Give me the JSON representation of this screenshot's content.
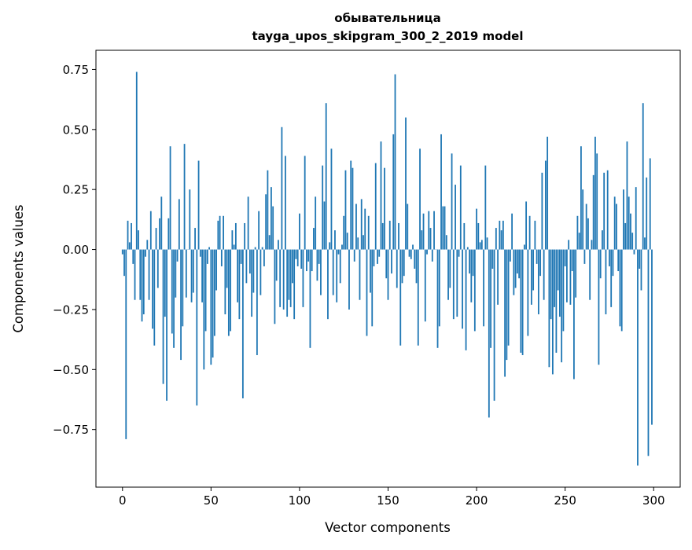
{
  "chart_data": {
    "type": "bar",
    "title": "обывательница",
    "subtitle": "tayga_upos_skipgram_300_2_2019 model",
    "xlabel": "Vector components",
    "ylabel": "Components values",
    "xlim": [
      -15,
      315
    ],
    "ylim": [
      -0.99,
      0.83
    ],
    "xticks": [
      0,
      50,
      100,
      150,
      200,
      250,
      300
    ],
    "xtick_labels": [
      "0",
      "50",
      "100",
      "150",
      "200",
      "250",
      "300"
    ],
    "yticks": [
      -0.75,
      -0.5,
      -0.25,
      0,
      0.25,
      0.5,
      0.75
    ],
    "ytick_labels": [
      "−0.75",
      "−0.50",
      "−0.25",
      "0.00",
      "0.25",
      "0.50",
      "0.75"
    ],
    "grid": false,
    "color": "#1f77b4",
    "values": [
      -0.02,
      -0.11,
      -0.79,
      0.12,
      0.03,
      0.11,
      -0.06,
      -0.21,
      0.74,
      0.08,
      -0.21,
      -0.3,
      -0.27,
      -0.03,
      0.04,
      -0.21,
      0.16,
      -0.33,
      -0.4,
      0.09,
      -0.16,
      0.13,
      0.22,
      -0.56,
      -0.28,
      -0.63,
      0.13,
      0.43,
      -0.35,
      -0.41,
      -0.2,
      -0.05,
      0.21,
      -0.46,
      -0.32,
      0.44,
      -0.2,
      0.0,
      0.25,
      -0.22,
      -0.18,
      0.09,
      -0.65,
      0.37,
      -0.03,
      -0.22,
      -0.5,
      -0.34,
      -0.06,
      0.01,
      -0.48,
      -0.45,
      -0.36,
      -0.17,
      0.12,
      0.14,
      -0.07,
      0.14,
      -0.27,
      -0.16,
      -0.36,
      -0.34,
      0.08,
      0.02,
      0.11,
      -0.22,
      -0.29,
      -0.06,
      -0.62,
      0.11,
      -0.14,
      0.22,
      -0.1,
      -0.28,
      -0.18,
      0.01,
      -0.44,
      0.16,
      -0.19,
      0.01,
      -0.07,
      0.23,
      0.33,
      0.06,
      0.26,
      0.18,
      -0.31,
      -0.13,
      0.04,
      -0.24,
      0.51,
      -0.25,
      0.39,
      -0.28,
      -0.21,
      -0.24,
      -0.14,
      -0.29,
      -0.04,
      -0.07,
      0.15,
      -0.08,
      -0.24,
      0.39,
      -0.09,
      -0.05,
      -0.41,
      -0.09,
      0.09,
      0.22,
      -0.13,
      -0.06,
      -0.19,
      0.35,
      0.2,
      0.61,
      -0.29,
      0.03,
      0.42,
      -0.19,
      0.08,
      -0.22,
      -0.02,
      -0.14,
      0.02,
      0.14,
      0.33,
      0.07,
      -0.25,
      0.37,
      0.34,
      -0.05,
      0.19,
      0.05,
      -0.21,
      0.21,
      0.06,
      0.17,
      -0.36,
      0.14,
      -0.18,
      -0.32,
      -0.07,
      0.36,
      -0.06,
      -0.03,
      0.45,
      0.11,
      0.34,
      -0.12,
      -0.21,
      0.12,
      -0.1,
      0.48,
      0.73,
      -0.16,
      0.11,
      -0.4,
      -0.14,
      -0.11,
      0.55,
      0.19,
      -0.03,
      -0.04,
      0.02,
      -0.08,
      -0.14,
      -0.4,
      0.42,
      0.08,
      0.15,
      -0.3,
      -0.02,
      0.16,
      0.09,
      -0.05,
      0.16,
      0.0,
      -0.41,
      -0.32,
      0.48,
      0.18,
      0.18,
      0.06,
      -0.21,
      -0.16,
      0.4,
      -0.29,
      0.27,
      -0.28,
      -0.03,
      0.35,
      -0.33,
      0.11,
      -0.42,
      0.01,
      -0.1,
      -0.22,
      -0.11,
      -0.34,
      0.17,
      0.11,
      0.03,
      0.04,
      -0.32,
      0.35,
      0.05,
      -0.7,
      -0.41,
      -0.08,
      -0.63,
      0.09,
      -0.23,
      0.12,
      0.08,
      0.12,
      -0.53,
      -0.46,
      -0.4,
      -0.05,
      0.15,
      -0.19,
      -0.16,
      -0.1,
      -0.12,
      -0.43,
      -0.44,
      0.02,
      0.2,
      -0.36,
      0.14,
      -0.23,
      -0.17,
      0.12,
      -0.06,
      -0.27,
      -0.11,
      0.32,
      -0.21,
      0.37,
      0.47,
      -0.49,
      -0.29,
      -0.52,
      -0.24,
      -0.43,
      -0.17,
      -0.28,
      -0.47,
      -0.34,
      -0.07,
      -0.22,
      0.04,
      -0.23,
      -0.09,
      -0.54,
      -0.2,
      0.14,
      0.07,
      0.43,
      0.25,
      -0.06,
      0.19,
      0.13,
      -0.21,
      0.04,
      0.31,
      0.47,
      0.4,
      -0.48,
      -0.12,
      0.08,
      0.32,
      -0.27,
      0.33,
      -0.07,
      -0.24,
      -0.11,
      0.22,
      0.19,
      -0.09,
      -0.32,
      -0.34,
      0.25,
      0.11,
      0.45,
      0.22,
      0.15,
      0.07,
      -0.02,
      0.26,
      -0.9,
      -0.08,
      -0.17,
      0.61,
      0.05,
      0.3,
      -0.86,
      0.38,
      -0.73
    ]
  }
}
